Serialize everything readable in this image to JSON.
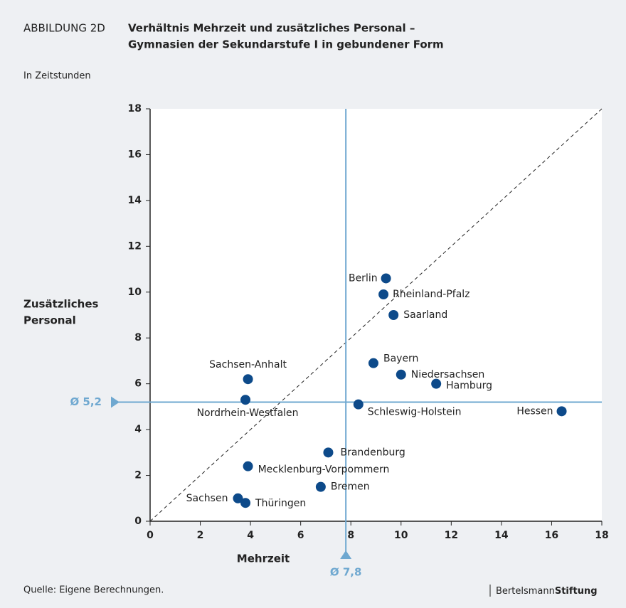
{
  "chart_data": {
    "type": "scatter",
    "figure_label": "ABBILDUNG 2D",
    "title": [
      "Verhältnis Mehrzeit und zusätzliches Personal –",
      "Gymnasien der Sekundarstufe I in gebundener Form"
    ],
    "subtitle": "In Zeitstunden",
    "x_label": "Mehrzeit",
    "y_label": [
      "Zusätzliches",
      "Personal"
    ],
    "source": "Quelle: Eigene Berechnungen.",
    "logo": [
      "Bertelsmann",
      "Stiftung"
    ],
    "color": "#0d4a8a",
    "mean_color": "#6fa8d0",
    "diagonal": true,
    "xlim": [
      0,
      18
    ],
    "ylim": [
      0,
      18
    ],
    "xticks": [
      0,
      2,
      4,
      6,
      8,
      10,
      12,
      14,
      16,
      18
    ],
    "yticks": [
      0,
      2,
      4,
      6,
      8,
      10,
      12,
      14,
      16,
      18
    ],
    "mean_x": {
      "value": 7.8,
      "label": "Ø 7,8"
    },
    "mean_y": {
      "value": 5.2,
      "label": "Ø 5,2"
    },
    "labels": [
      "Berlin",
      "Rheinland-Pfalz",
      "Saarland",
      "Bayern",
      "Niedersachsen",
      "Hamburg",
      "Hessen",
      "Schleswig-Holstein",
      "Sachsen-Anhalt",
      "Nordrhein-Westfalen",
      "Brandenburg",
      "Mecklenburg-Vorpommern",
      "Bremen",
      "Sachsen",
      "Thüringen"
    ],
    "x": [
      9.4,
      9.3,
      9.7,
      8.9,
      10.0,
      11.4,
      16.4,
      8.3,
      3.9,
      3.8,
      7.1,
      3.9,
      6.8,
      3.5,
      3.8
    ],
    "values": [
      10.6,
      9.9,
      9.0,
      6.9,
      6.4,
      6.0,
      4.8,
      5.1,
      6.2,
      5.3,
      3.0,
      2.4,
      1.5,
      1.0,
      0.8
    ]
  }
}
